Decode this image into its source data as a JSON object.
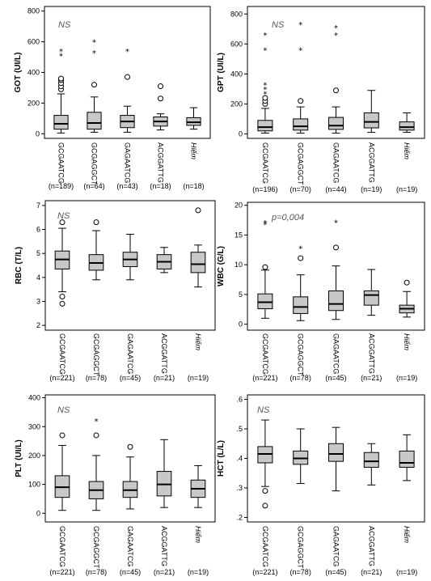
{
  "chart_data": [
    {
      "type": "box",
      "ylabel": "GOT (UI/L)",
      "annotation": "NS",
      "ylim": [
        -30,
        830
      ],
      "yticks": [
        0,
        200,
        400,
        600,
        800
      ],
      "categories": [
        "GCGAATCG",
        "GCGAGGCT",
        "GAGAATCG",
        "ACGGATTG",
        "Hiếm"
      ],
      "n_labels": [
        "(n=189)",
        "(n=64)",
        "(n=43)",
        "(n=18)",
        "(n=18)"
      ],
      "boxes": [
        {
          "min": 5,
          "q1": 30,
          "median": 65,
          "q3": 120,
          "max": 260,
          "outliers": [
            290,
            310,
            330,
            350,
            360
          ],
          "extremes": [
            510,
            540
          ]
        },
        {
          "min": 10,
          "q1": 30,
          "median": 70,
          "q3": 140,
          "max": 240,
          "outliers": [
            320
          ],
          "extremes": [
            530,
            600
          ]
        },
        {
          "min": 10,
          "q1": 40,
          "median": 80,
          "q3": 120,
          "max": 180,
          "outliers": [
            370
          ],
          "extremes": [
            540
          ]
        },
        {
          "min": 25,
          "q1": 50,
          "median": 80,
          "q3": 110,
          "max": 130,
          "outliers": [
            230,
            310
          ],
          "extremes": []
        },
        {
          "min": 30,
          "q1": 55,
          "median": 75,
          "q3": 105,
          "max": 170,
          "outliers": [],
          "extremes": []
        }
      ]
    },
    {
      "type": "box",
      "ylabel": "GPT (UI/L)",
      "annotation": "NS",
      "ylim": [
        -30,
        850
      ],
      "yticks": [
        0,
        200,
        400,
        600,
        800
      ],
      "categories": [
        "GCGAATCG",
        "GCGAGGCT",
        "GAGAATCG",
        "ACGGATTG",
        "Hiếm"
      ],
      "n_labels": [
        "(n=196)",
        "(n=70)",
        "(n=44)",
        "(n=19)",
        "(n=19)"
      ],
      "boxes": [
        {
          "min": 5,
          "q1": 20,
          "median": 45,
          "q3": 90,
          "max": 170,
          "outliers": [
            200,
            220,
            240
          ],
          "extremes": [
            270,
            300,
            330,
            560,
            660
          ]
        },
        {
          "min": 5,
          "q1": 25,
          "median": 50,
          "q3": 100,
          "max": 180,
          "outliers": [
            220
          ],
          "extremes": [
            560,
            730
          ]
        },
        {
          "min": 5,
          "q1": 30,
          "median": 55,
          "q3": 110,
          "max": 180,
          "outliers": [
            290
          ],
          "extremes": [
            660,
            710
          ]
        },
        {
          "min": 10,
          "q1": 40,
          "median": 80,
          "q3": 140,
          "max": 290,
          "outliers": [],
          "extremes": []
        },
        {
          "min": 10,
          "q1": 25,
          "median": 45,
          "q3": 80,
          "max": 140,
          "outliers": [],
          "extremes": []
        }
      ]
    },
    {
      "type": "box",
      "ylabel": "RBC (T/L)",
      "annotation": "NS",
      "ylim": [
        1.8,
        7.2
      ],
      "yticks": [
        2,
        3,
        4,
        5,
        6,
        7
      ],
      "categories": [
        "GCGAATCG",
        "GCGAGGCT",
        "GAGAATCG",
        "ACGGATTG",
        "Hiếm"
      ],
      "n_labels": [
        "(n=221)",
        "(n=78)",
        "(n=45)",
        "(n=21)",
        "(n=19)"
      ],
      "boxes": [
        {
          "min": 3.4,
          "q1": 4.35,
          "median": 4.75,
          "q3": 5.1,
          "max": 6.05,
          "outliers": [
            3.2,
            2.9,
            6.3
          ],
          "extremes": []
        },
        {
          "min": 3.9,
          "q1": 4.3,
          "median": 4.6,
          "q3": 4.95,
          "max": 5.95,
          "outliers": [
            6.3
          ],
          "extremes": []
        },
        {
          "min": 3.9,
          "q1": 4.45,
          "median": 4.75,
          "q3": 5.05,
          "max": 5.8,
          "outliers": [],
          "extremes": []
        },
        {
          "min": 4.2,
          "q1": 4.35,
          "median": 4.65,
          "q3": 4.95,
          "max": 5.25,
          "outliers": [],
          "extremes": []
        },
        {
          "min": 3.6,
          "q1": 4.2,
          "median": 4.55,
          "q3": 5.05,
          "max": 5.35,
          "outliers": [
            6.8
          ],
          "extremes": []
        }
      ]
    },
    {
      "type": "box",
      "ylabel": "WBC (G/L)",
      "annotation": "p=0,004",
      "ylim": [
        -1,
        20.5
      ],
      "yticks": [
        0,
        5,
        10,
        15,
        20
      ],
      "categories": [
        "GCGAATCG",
        "GCGAGGCT",
        "GAGAATCG",
        "ACGGATTG",
        "Hiếm"
      ],
      "n_labels": [
        "(n=221)",
        "(n=78)",
        "(n=45)",
        "(n=21)",
        "(n=19)"
      ],
      "boxes": [
        {
          "min": 1,
          "q1": 2.6,
          "median": 3.7,
          "q3": 5.1,
          "max": 9.1,
          "outliers": [
            9.6
          ],
          "extremes": [
            16.8,
            17.1
          ]
        },
        {
          "min": 0.6,
          "q1": 1.8,
          "median": 2.9,
          "q3": 4.6,
          "max": 8.3,
          "outliers": [
            11.1
          ],
          "extremes": [
            12.8
          ]
        },
        {
          "min": 0.8,
          "q1": 2.3,
          "median": 3.4,
          "q3": 5.6,
          "max": 9.8,
          "outliers": [
            12.9
          ],
          "extremes": [
            17.2
          ]
        },
        {
          "min": 1.5,
          "q1": 3.2,
          "median": 4.9,
          "q3": 5.6,
          "max": 9.2,
          "outliers": [],
          "extremes": []
        },
        {
          "min": 1.2,
          "q1": 1.9,
          "median": 2.6,
          "q3": 3.2,
          "max": 5.5,
          "outliers": [
            7.0
          ],
          "extremes": []
        }
      ]
    },
    {
      "type": "box",
      "ylabel": "PLT (UI/L)",
      "annotation": "NS",
      "ylim": [
        -30,
        410
      ],
      "yticks": [
        0,
        100,
        200,
        300,
        400
      ],
      "categories": [
        "GCGAATCG",
        "GCGAGGCT",
        "GAGAATCG",
        "ACGGATTG",
        "Hiếm"
      ],
      "n_labels": [
        "(n=221)",
        "(n=78)",
        "(n=45)",
        "(n=21)",
        "(n=19)"
      ],
      "boxes": [
        {
          "min": 10,
          "q1": 55,
          "median": 90,
          "q3": 130,
          "max": 235,
          "outliers": [
            270
          ],
          "extremes": []
        },
        {
          "min": 10,
          "q1": 50,
          "median": 80,
          "q3": 110,
          "max": 200,
          "outliers": [
            270
          ],
          "extremes": [
            320
          ]
        },
        {
          "min": 15,
          "q1": 55,
          "median": 80,
          "q3": 110,
          "max": 195,
          "outliers": [
            230
          ],
          "extremes": []
        },
        {
          "min": 20,
          "q1": 60,
          "median": 100,
          "q3": 145,
          "max": 255,
          "outliers": [],
          "extremes": []
        },
        {
          "min": 20,
          "q1": 55,
          "median": 85,
          "q3": 115,
          "max": 165,
          "outliers": [],
          "extremes": []
        }
      ]
    },
    {
      "type": "box",
      "ylabel": "HCT (L/L)",
      "annotation": "NS",
      "ylim": [
        0.185,
        0.615
      ],
      "yticks": [
        0.2,
        0.3,
        0.4,
        0.5,
        0.6
      ],
      "ytick_labels": [
        ".2",
        ".3",
        ".4",
        ".5",
        ".6"
      ],
      "categories": [
        "GCGAATCG",
        "GCGAGGCT",
        "GAGAATCG",
        "ACGGATTG",
        "Hiếm"
      ],
      "n_labels": [
        "(n=221)",
        "(n=78)",
        "(n=45)",
        "(n=21)",
        "(n=19)"
      ],
      "boxes": [
        {
          "min": 0.305,
          "q1": 0.385,
          "median": 0.415,
          "q3": 0.44,
          "max": 0.53,
          "outliers": [
            0.29,
            0.24
          ],
          "extremes": []
        },
        {
          "min": 0.315,
          "q1": 0.38,
          "median": 0.4,
          "q3": 0.425,
          "max": 0.5,
          "outliers": [],
          "extremes": []
        },
        {
          "min": 0.29,
          "q1": 0.39,
          "median": 0.415,
          "q3": 0.45,
          "max": 0.505,
          "outliers": [],
          "extremes": []
        },
        {
          "min": 0.31,
          "q1": 0.37,
          "median": 0.39,
          "q3": 0.42,
          "max": 0.45,
          "outliers": [],
          "extremes": []
        },
        {
          "min": 0.325,
          "q1": 0.37,
          "median": 0.385,
          "q3": 0.425,
          "max": 0.48,
          "outliers": [],
          "extremes": []
        }
      ]
    }
  ]
}
